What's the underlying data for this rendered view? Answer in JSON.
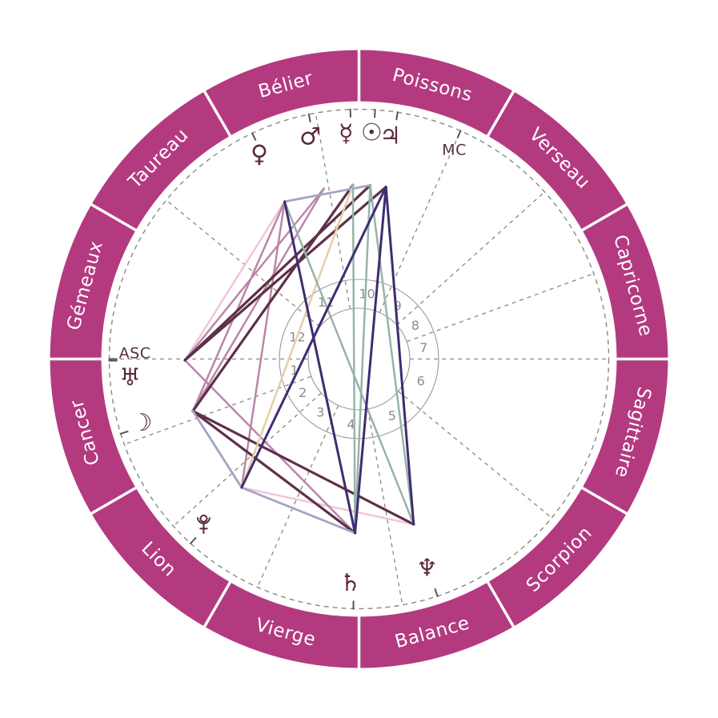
{
  "chart": {
    "description": "Roue astrologique (theme natal) avec signes du zodiaque, maisons et aspects",
    "background": "#ffffff",
    "ring": {
      "color": "#b43a80",
      "divider_color": "#ffffff",
      "label_color": "#ffffff"
    },
    "colors": {
      "glyph": "#5b2936",
      "angle_label": "#53323e",
      "house_number": "#8d8d8d",
      "house_circle": "#9a9a9a",
      "dashed_line": "#888888",
      "tick": "#555555"
    },
    "aspect_palette": {
      "pink": "#f2c5d9",
      "mauve": "#bc85a8",
      "maroon": "#5d3048",
      "lavender": "#a7a1c6",
      "beige": "#e7cda6",
      "teal": "#97b3ab",
      "indigo": "#3f2c72"
    },
    "zodiac_signs": [
      {
        "name": "Capricorne",
        "start_angle": 0
      },
      {
        "name": "Verseau",
        "start_angle": 30
      },
      {
        "name": "Poissons",
        "start_angle": 60
      },
      {
        "name": "Bélier",
        "start_angle": 90
      },
      {
        "name": "Taureau",
        "start_angle": 120
      },
      {
        "name": "Gémeaux",
        "start_angle": 150
      },
      {
        "name": "Cancer",
        "start_angle": 180
      },
      {
        "name": "Lion",
        "start_angle": 210
      },
      {
        "name": "Vierge",
        "start_angle": 240
      },
      {
        "name": "Balance",
        "start_angle": 270
      },
      {
        "name": "Scorpion",
        "start_angle": 300
      },
      {
        "name": "Sagittaire",
        "start_angle": 330
      }
    ],
    "house_cusp_angles": [
      180,
      200,
      222,
      246,
      280,
      320.5,
      0,
      20,
      42,
      66,
      100,
      140.5
    ],
    "house_numbers": [
      "1",
      "2",
      "3",
      "4",
      "5",
      "6",
      "7",
      "8",
      "9",
      "10",
      "11",
      "12"
    ],
    "planets": [
      {
        "name": "venus",
        "symbol": "♀",
        "angle": 115.3,
        "glyph_angle": 116.0,
        "glyph_radius": 284
      },
      {
        "name": "mars",
        "symbol": "♂",
        "angle": 101.6,
        "glyph_angle": 102.4,
        "glyph_radius": 284
      },
      {
        "name": "mercury",
        "symbol": "☿",
        "angle": 92.0,
        "glyph_angle": 93.3,
        "glyph_radius": 282
      },
      {
        "name": "sun",
        "symbol": "☉",
        "angle": 86.3,
        "glyph_angle": 86.8,
        "glyph_radius": 283
      },
      {
        "name": "jupiter",
        "symbol": "♃",
        "angle": 81.1,
        "glyph_angle": 82.0,
        "glyph_radius": 281
      },
      {
        "name": "uranus",
        "symbol": "♅",
        "angle": 180.4,
        "glyph_angle": 184.7,
        "glyph_radius": 287
      },
      {
        "name": "moon",
        "symbol": "☽",
        "angle": 197.4,
        "glyph_angle": 196.4,
        "glyph_radius": 283
      },
      {
        "name": "pluto",
        "symbol": "♇",
        "angle": 227.6,
        "glyph_angle": 226.9,
        "glyph_radius": 284
      },
      {
        "name": "saturn",
        "symbol": "♄",
        "angle": 268.7,
        "glyph_angle": 267.8,
        "glyph_radius": 280
      },
      {
        "name": "neptune",
        "symbol": "♆",
        "angle": 288.3,
        "glyph_angle": 288.0,
        "glyph_radius": 275
      }
    ],
    "angle_points": [
      {
        "name": "asc",
        "label": "ASC",
        "angle": 180,
        "label_angle": 178.6,
        "label_radius": 280
      },
      {
        "name": "mc",
        "label": "MC",
        "angle": 66,
        "label_angle": 65.5,
        "label_radius": 287
      }
    ],
    "aspects": [
      {
        "between": [
          "venus",
          "uranus"
        ],
        "color": "pink"
      },
      {
        "between": [
          "pluto",
          "neptune"
        ],
        "color": "pink"
      },
      {
        "between": [
          "mars",
          "uranus"
        ],
        "color": "mauve"
      },
      {
        "between": [
          "venus",
          "moon"
        ],
        "color": "mauve"
      },
      {
        "between": [
          "mars",
          "moon"
        ],
        "color": "mauve"
      },
      {
        "between": [
          "venus",
          "pluto"
        ],
        "color": "mauve"
      },
      {
        "between": [
          "uranus",
          "saturn"
        ],
        "color": "mauve"
      },
      {
        "between": [
          "mercury",
          "moon"
        ],
        "color": "maroon"
      },
      {
        "between": [
          "sun",
          "uranus"
        ],
        "color": "maroon"
      },
      {
        "between": [
          "jupiter",
          "uranus"
        ],
        "color": "maroon"
      },
      {
        "between": [
          "moon",
          "saturn"
        ],
        "color": "maroon"
      },
      {
        "between": [
          "moon",
          "neptune"
        ],
        "color": "maroon"
      },
      {
        "between": [
          "venus",
          "sun"
        ],
        "color": "lavender"
      },
      {
        "between": [
          "moon",
          "pluto"
        ],
        "color": "lavender"
      },
      {
        "between": [
          "pluto",
          "saturn"
        ],
        "color": "lavender"
      },
      {
        "between": [
          "mercury",
          "pluto"
        ],
        "color": "beige"
      },
      {
        "between": [
          "venus",
          "neptune"
        ],
        "color": "teal"
      },
      {
        "between": [
          "mercury",
          "saturn"
        ],
        "color": "teal"
      },
      {
        "between": [
          "sun",
          "saturn"
        ],
        "color": "teal"
      },
      {
        "between": [
          "sun",
          "neptune"
        ],
        "color": "teal"
      },
      {
        "between": [
          "jupiter",
          "pluto"
        ],
        "color": "indigo"
      },
      {
        "between": [
          "jupiter",
          "saturn"
        ],
        "color": "indigo"
      },
      {
        "between": [
          "jupiter",
          "neptune"
        ],
        "color": "indigo"
      },
      {
        "between": [
          "venus",
          "saturn"
        ],
        "color": "indigo"
      }
    ]
  }
}
